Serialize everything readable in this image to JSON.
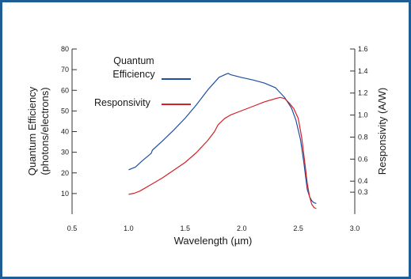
{
  "chart_data": {
    "type": "line",
    "title": "",
    "xlabel": "Wavelength (µm)",
    "ylabel_left": [
      "Quantum Efficiency",
      "(photons/electrons)"
    ],
    "ylabel_right": "Responsivity (A/W)",
    "xlim": [
      0.5,
      3.0
    ],
    "ylim_left": [
      0,
      80
    ],
    "ylim_right": [
      0.1,
      1.6
    ],
    "x_ticks": [
      "0.5",
      "1.0",
      "1.5",
      "2.0",
      "2.5",
      "3.0"
    ],
    "y_ticks_left": [
      "10",
      "20",
      "30",
      "40",
      "50",
      "60",
      "70",
      "80"
    ],
    "y_ticks_right": [
      "0.3",
      "0.4",
      "0.6",
      "0.8",
      "1.0",
      "1.2",
      "1.4",
      "1.6"
    ],
    "grid": false,
    "legend_placement": "top-left",
    "series": [
      {
        "name": "Quantum Efficiency",
        "axis": "left",
        "color": "#1e4fa0",
        "x": [
          1.0,
          1.06,
          1.12,
          1.2,
          1.21,
          1.3,
          1.4,
          1.5,
          1.6,
          1.7,
          1.8,
          1.86,
          1.88,
          1.9,
          2.0,
          2.1,
          2.2,
          2.3,
          2.38,
          2.44,
          2.48,
          2.52,
          2.55,
          2.57,
          2.58,
          2.6,
          2.62,
          2.64,
          2.66
        ],
        "y": [
          21.5,
          22.8,
          25.8,
          29.5,
          31,
          35.5,
          40.8,
          46.5,
          53,
          60.2,
          66.3,
          67.8,
          68.2,
          67.6,
          66.2,
          65,
          63.5,
          61.2,
          56.5,
          51.5,
          45.5,
          36,
          25,
          16,
          12,
          8.5,
          6.5,
          5.5,
          5.2
        ]
      },
      {
        "name": "Responsivity",
        "axis": "right",
        "color": "#d42027",
        "x": [
          1.0,
          1.05,
          1.1,
          1.2,
          1.3,
          1.4,
          1.5,
          1.6,
          1.7,
          1.76,
          1.79,
          1.8,
          1.85,
          1.9,
          2.0,
          2.1,
          2.2,
          2.3,
          2.34,
          2.38,
          2.42,
          2.46,
          2.5,
          2.53,
          2.56,
          2.58,
          2.6,
          2.62,
          2.64,
          2.66
        ],
        "y": [
          0.28,
          0.29,
          0.31,
          0.37,
          0.43,
          0.5,
          0.57,
          0.66,
          0.77,
          0.85,
          0.91,
          0.92,
          0.97,
          1.0,
          1.04,
          1.08,
          1.12,
          1.15,
          1.16,
          1.15,
          1.11,
          1.06,
          0.97,
          0.8,
          0.55,
          0.38,
          0.26,
          0.19,
          0.16,
          0.15
        ]
      }
    ]
  }
}
